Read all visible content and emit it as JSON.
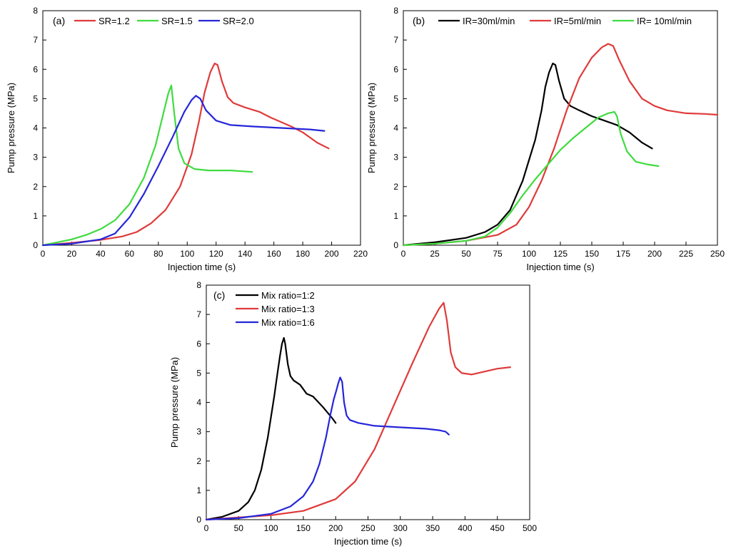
{
  "chart_data": [
    {
      "type": "line",
      "panel_label": "(a)",
      "xlabel": "Injection time (s)",
      "ylabel": "Pump pressure (MPa)",
      "xlim": [
        0,
        220
      ],
      "ylim": [
        0,
        8
      ],
      "xticks": [
        0,
        20,
        40,
        60,
        80,
        100,
        120,
        140,
        160,
        180,
        200,
        220
      ],
      "yticks": [
        0,
        1,
        2,
        3,
        4,
        5,
        6,
        7,
        8
      ],
      "legend_position": "top",
      "series": [
        {
          "name": "SR=1.2",
          "color": "#e03a3a",
          "x": [
            0,
            20,
            40,
            55,
            65,
            75,
            85,
            95,
            103,
            108,
            112,
            116,
            119,
            121,
            124,
            128,
            132,
            140,
            150,
            158,
            165,
            172,
            180,
            190,
            198
          ],
          "y": [
            0,
            0.08,
            0.18,
            0.3,
            0.45,
            0.75,
            1.2,
            2.0,
            3.1,
            4.2,
            5.2,
            5.9,
            6.2,
            6.15,
            5.6,
            5.05,
            4.85,
            4.7,
            4.55,
            4.35,
            4.2,
            4.05,
            3.85,
            3.5,
            3.3
          ]
        },
        {
          "name": "SR=1.5",
          "color": "#3fdb3f",
          "x": [
            0,
            10,
            20,
            30,
            40,
            50,
            60,
            70,
            78,
            83,
            87,
            89,
            91,
            94,
            98,
            105,
            115,
            130,
            145
          ],
          "y": [
            0,
            0.1,
            0.2,
            0.35,
            0.55,
            0.85,
            1.4,
            2.3,
            3.4,
            4.4,
            5.2,
            5.45,
            4.5,
            3.3,
            2.8,
            2.6,
            2.55,
            2.55,
            2.5
          ]
        },
        {
          "name": "SR=2.0",
          "color": "#2626d9",
          "x": [
            0,
            20,
            40,
            50,
            60,
            70,
            80,
            90,
            98,
            103,
            106,
            109,
            113,
            120,
            130,
            145,
            165,
            185,
            195
          ],
          "y": [
            0,
            0.05,
            0.2,
            0.4,
            0.95,
            1.75,
            2.7,
            3.7,
            4.55,
            4.95,
            5.1,
            5.0,
            4.6,
            4.25,
            4.1,
            4.05,
            4.0,
            3.95,
            3.9
          ]
        }
      ]
    },
    {
      "type": "line",
      "panel_label": "(b)",
      "xlabel": "Injection time (s)",
      "ylabel": "Pump pressure (MPa)",
      "xlim": [
        0,
        250
      ],
      "ylim": [
        0,
        8
      ],
      "xticks": [
        0,
        25,
        50,
        75,
        100,
        125,
        150,
        175,
        200,
        225,
        250
      ],
      "yticks": [
        0,
        1,
        2,
        3,
        4,
        5,
        6,
        7,
        8
      ],
      "legend_position": "top",
      "series": [
        {
          "name": "IR=30ml/min",
          "color": "#000000",
          "x": [
            0,
            25,
            50,
            65,
            75,
            85,
            95,
            105,
            110,
            113,
            116,
            119,
            121,
            124,
            128,
            133,
            140,
            150,
            160,
            170,
            180,
            190,
            198
          ],
          "y": [
            0,
            0.1,
            0.25,
            0.45,
            0.7,
            1.2,
            2.2,
            3.6,
            4.6,
            5.4,
            5.9,
            6.2,
            6.15,
            5.6,
            5.0,
            4.75,
            4.6,
            4.4,
            4.25,
            4.1,
            3.85,
            3.5,
            3.3
          ]
        },
        {
          "name": "IR=5ml/min",
          "color": "#e03a3a",
          "x": [
            0,
            25,
            50,
            75,
            90,
            100,
            110,
            120,
            130,
            140,
            150,
            158,
            163,
            167,
            172,
            180,
            190,
            200,
            210,
            225,
            240,
            250
          ],
          "y": [
            0,
            0.05,
            0.15,
            0.35,
            0.7,
            1.3,
            2.2,
            3.3,
            4.6,
            5.7,
            6.4,
            6.75,
            6.87,
            6.8,
            6.3,
            5.6,
            5.0,
            4.75,
            4.6,
            4.5,
            4.48,
            4.45
          ]
        },
        {
          "name": "IR= 10ml/min",
          "color": "#3fdb3f",
          "x": [
            0,
            25,
            50,
            65,
            75,
            85,
            95,
            105,
            115,
            125,
            135,
            145,
            155,
            163,
            168,
            170,
            173,
            178,
            185,
            195,
            203
          ],
          "y": [
            0,
            0.05,
            0.15,
            0.3,
            0.6,
            1.1,
            1.7,
            2.25,
            2.75,
            3.25,
            3.65,
            4.0,
            4.35,
            4.5,
            4.55,
            4.4,
            3.8,
            3.2,
            2.85,
            2.75,
            2.7
          ]
        }
      ]
    },
    {
      "type": "line",
      "panel_label": "(c)",
      "xlabel": "Injection time (s)",
      "ylabel": "Pump pressure (MPa)",
      "xlim": [
        0,
        500
      ],
      "ylim": [
        0,
        8
      ],
      "xticks": [
        0,
        50,
        100,
        150,
        200,
        250,
        300,
        350,
        400,
        450,
        500
      ],
      "yticks": [
        0,
        1,
        2,
        3,
        4,
        5,
        6,
        7,
        8
      ],
      "legend_position": "top-left",
      "series": [
        {
          "name": "Mix ratio=1:2",
          "color": "#000000",
          "x": [
            0,
            25,
            50,
            65,
            75,
            85,
            95,
            105,
            110,
            114,
            117,
            120,
            122,
            126,
            130,
            135,
            145,
            155,
            165,
            180,
            195,
            200
          ],
          "y": [
            0,
            0.1,
            0.3,
            0.6,
            1.0,
            1.7,
            2.8,
            4.2,
            5.0,
            5.6,
            6.0,
            6.2,
            6.0,
            5.3,
            4.9,
            4.75,
            4.6,
            4.3,
            4.2,
            3.85,
            3.45,
            3.3
          ]
        },
        {
          "name": "Mix ratio=1:3",
          "color": "#e03a3a",
          "x": [
            0,
            100,
            150,
            200,
            230,
            260,
            290,
            320,
            345,
            360,
            367,
            372,
            378,
            385,
            395,
            410,
            430,
            450,
            470
          ],
          "y": [
            0,
            0.15,
            0.3,
            0.7,
            1.3,
            2.4,
            3.9,
            5.4,
            6.6,
            7.2,
            7.4,
            6.8,
            5.7,
            5.2,
            5.0,
            4.95,
            5.05,
            5.15,
            5.2
          ]
        },
        {
          "name": "Mix ratio=1:6",
          "color": "#2626d9",
          "x": [
            0,
            50,
            100,
            130,
            150,
            165,
            175,
            185,
            192,
            197,
            201,
            204,
            207,
            210,
            213,
            217,
            222,
            235,
            260,
            300,
            340,
            360,
            370,
            375
          ],
          "y": [
            0,
            0.05,
            0.2,
            0.45,
            0.8,
            1.3,
            1.9,
            2.8,
            3.6,
            4.1,
            4.4,
            4.65,
            4.85,
            4.7,
            4.0,
            3.55,
            3.4,
            3.3,
            3.2,
            3.15,
            3.1,
            3.05,
            3.0,
            2.9
          ]
        }
      ]
    }
  ]
}
